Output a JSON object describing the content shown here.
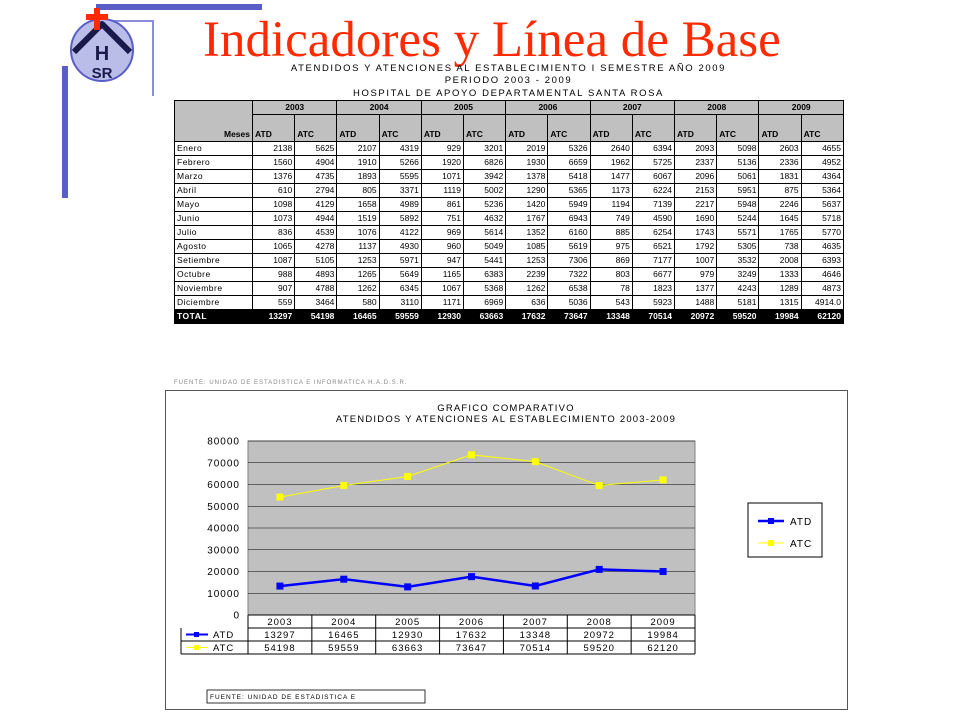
{
  "title": "Indicadores y Línea de Base",
  "table": {
    "heading": [
      "ATENDIDOS Y ATENCIONES AL ESTABLECIMIENTO I SEMESTRE AÑO 2009",
      "PERIODO 2003 - 2009",
      "HOSPITAL DE APOYO DEPARTAMENTAL SANTA ROSA"
    ],
    "meses_label": "Meses",
    "years": [
      "2003",
      "2004",
      "2005",
      "2006",
      "2007",
      "2008",
      "2009"
    ],
    "subheaders": [
      "ATD",
      "ATC"
    ],
    "rows": [
      {
        "mes": "Enero",
        "vals": [
          "2138",
          "5625",
          "2107",
          "4319",
          "929",
          "3201",
          "2019",
          "5326",
          "2640",
          "6394",
          "2093",
          "5098",
          "2603",
          "4655"
        ]
      },
      {
        "mes": "Febrero",
        "vals": [
          "1560",
          "4904",
          "1910",
          "5266",
          "1920",
          "6826",
          "1930",
          "6659",
          "1962",
          "5725",
          "2337",
          "5136",
          "2336",
          "4952"
        ]
      },
      {
        "mes": "Marzo",
        "vals": [
          "1376",
          "4735",
          "1893",
          "5595",
          "1071",
          "3942",
          "1378",
          "5418",
          "1477",
          "6067",
          "2096",
          "5061",
          "1831",
          "4364"
        ]
      },
      {
        "mes": "Abril",
        "vals": [
          "610",
          "2794",
          "805",
          "3371",
          "1119",
          "5002",
          "1290",
          "5365",
          "1173",
          "6224",
          "2153",
          "5951",
          "875",
          "5364"
        ]
      },
      {
        "mes": "Mayo",
        "vals": [
          "1098",
          "4129",
          "1658",
          "4989",
          "861",
          "5236",
          "1420",
          "5949",
          "1194",
          "7139",
          "2217",
          "5948",
          "2246",
          "5637"
        ]
      },
      {
        "mes": "Junio",
        "vals": [
          "1073",
          "4944",
          "1519",
          "5892",
          "751",
          "4632",
          "1767",
          "6943",
          "749",
          "4590",
          "1690",
          "5244",
          "1645",
          "5718"
        ]
      },
      {
        "mes": "Julio",
        "vals": [
          "836",
          "4539",
          "1076",
          "4122",
          "969",
          "5614",
          "1352",
          "6160",
          "885",
          "6254",
          "1743",
          "5571",
          "1765",
          "5770"
        ]
      },
      {
        "mes": "Agosto",
        "vals": [
          "1065",
          "4278",
          "1137",
          "4930",
          "960",
          "5049",
          "1085",
          "5619",
          "975",
          "6521",
          "1792",
          "5305",
          "738",
          "4635"
        ]
      },
      {
        "mes": "Setiembre",
        "vals": [
          "1087",
          "5105",
          "1253",
          "5971",
          "947",
          "5441",
          "1253",
          "7306",
          "869",
          "7177",
          "1007",
          "3532",
          "2008",
          "6393"
        ]
      },
      {
        "mes": "Octubre",
        "vals": [
          "988",
          "4893",
          "1265",
          "5649",
          "1165",
          "6383",
          "2239",
          "7322",
          "803",
          "6677",
          "979",
          "3249",
          "1333",
          "4646"
        ]
      },
      {
        "mes": "Noviembre",
        "vals": [
          "907",
          "4788",
          "1262",
          "6345",
          "1067",
          "5368",
          "1262",
          "6538",
          "78",
          "1823",
          "1377",
          "4243",
          "1289",
          "4873"
        ]
      },
      {
        "mes": "Diciembre",
        "vals": [
          "559",
          "3464",
          "580",
          "3110",
          "1171",
          "6969",
          "636",
          "5036",
          "543",
          "5923",
          "1488",
          "5181",
          "1315",
          "4914.0"
        ]
      }
    ],
    "total": {
      "label": "TOTAL",
      "vals": [
        "13297",
        "54198",
        "16465",
        "59559",
        "12930",
        "63663",
        "17632",
        "73647",
        "13348",
        "70514",
        "20972",
        "59520",
        "19984",
        "62120"
      ]
    }
  },
  "source_note_top": "FUENTE: UNIDAD DE ESTADISTICA E INFORMATICA H.A.D.S.R.",
  "source_note_bottom": "FUENTE: UNIDAD DE ESTADISTICA E",
  "chart_data": {
    "type": "line",
    "title": "GRAFICO COMPARATIVO",
    "subtitle": "ATENDIDOS Y ATENCIONES AL ESTABLECIMIENTO 2003-2009",
    "categories": [
      "2003",
      "2004",
      "2005",
      "2006",
      "2007",
      "2008",
      "2009"
    ],
    "series": [
      {
        "name": "ATD",
        "color": "#0000ff",
        "values": [
          13297,
          16465,
          12930,
          17632,
          13348,
          20972,
          19984
        ]
      },
      {
        "name": "ATC",
        "color": "#ffff00",
        "values": [
          54198,
          59559,
          63663,
          73647,
          70514,
          59520,
          62120
        ]
      }
    ],
    "ylim": [
      0,
      80000
    ],
    "yticks": [
      0,
      10000,
      20000,
      30000,
      40000,
      50000,
      60000,
      70000,
      80000
    ],
    "plot_background": "#c0c0c0",
    "grid": true,
    "legend": "right",
    "data_table": true
  }
}
